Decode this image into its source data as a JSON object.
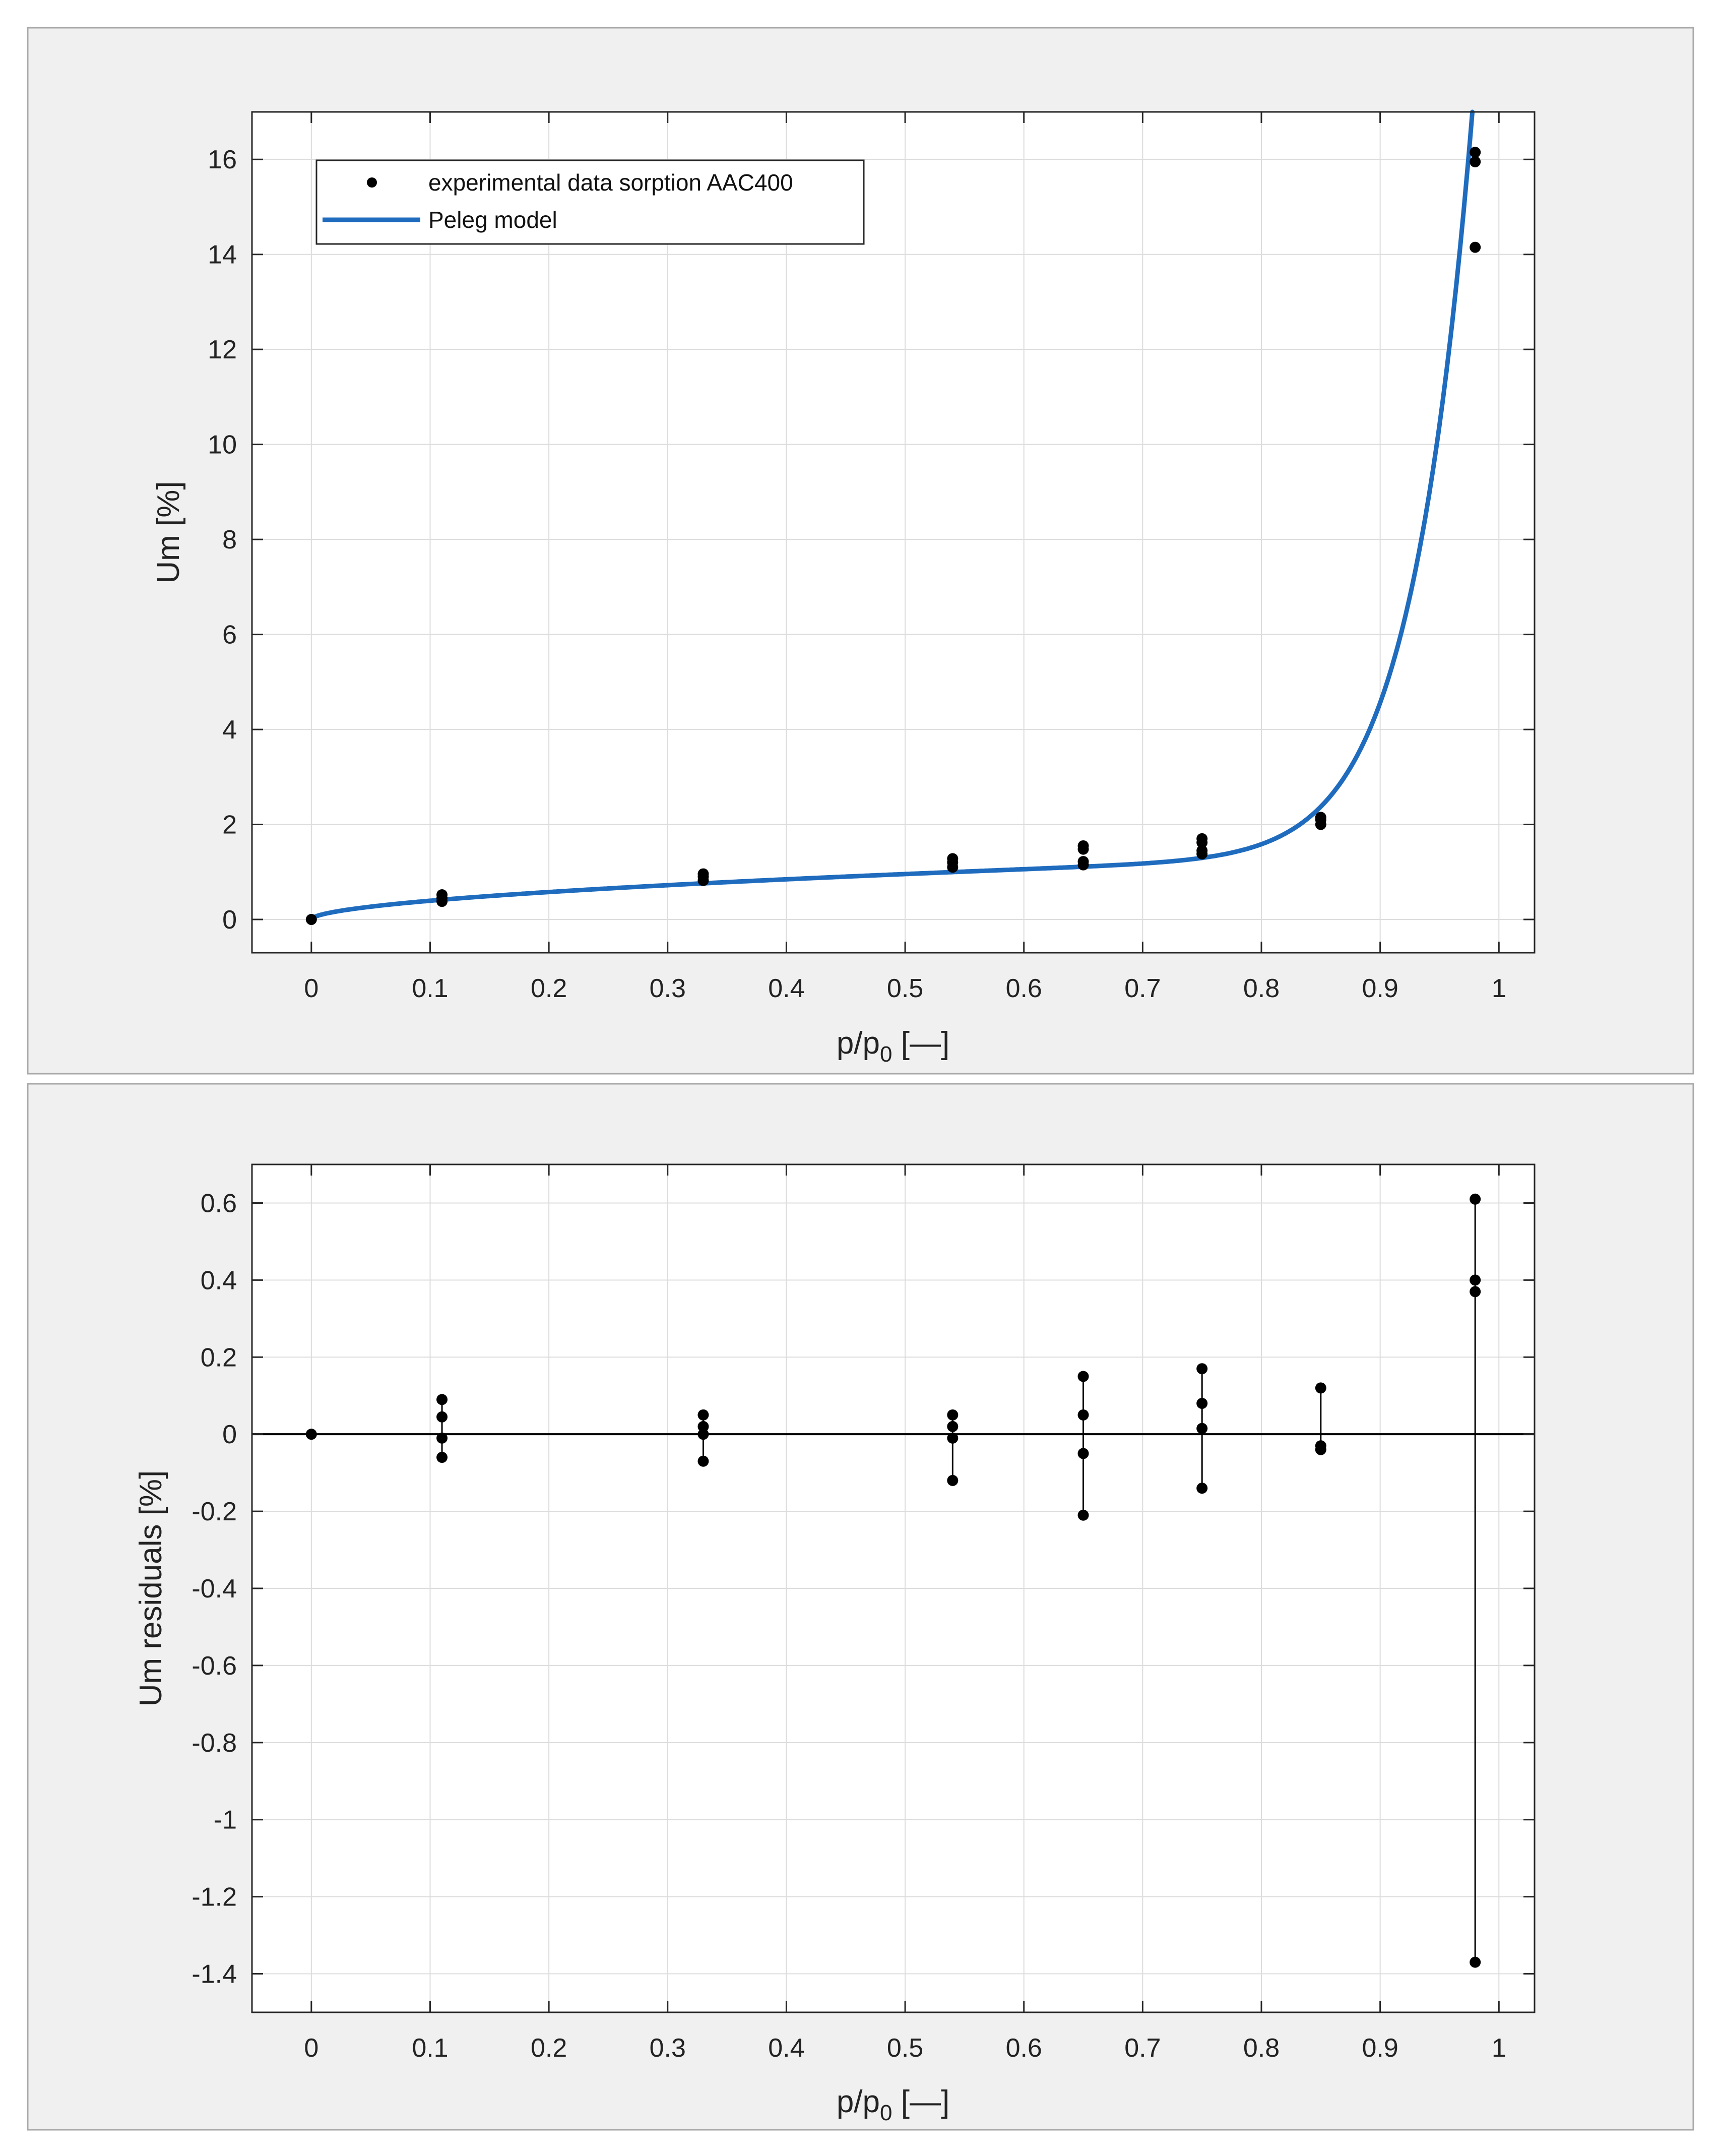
{
  "chart_data": [
    {
      "type": "scatter",
      "title": "",
      "xlabel": "p/p",
      "xlabel_sub": "0",
      "xlabel_unit": " [—]",
      "ylabel": "Um [%]",
      "xlim": [
        -0.05,
        1.03
      ],
      "ylim": [
        -0.7,
        17.0
      ],
      "xticks": [
        "0",
        "0.1",
        "0.2",
        "0.3",
        "0.4",
        "0.5",
        "0.6",
        "0.7",
        "0.8",
        "0.9",
        "1"
      ],
      "yticks": [
        "0",
        "2",
        "4",
        "6",
        "8",
        "10",
        "12",
        "14",
        "16"
      ],
      "grid": true,
      "legend_position": "top-left",
      "series": [
        {
          "name": "experimental data sorption AAC400",
          "kind": "markers",
          "color": "#000000",
          "points": [
            [
              0,
              0.0
            ],
            [
              0.11,
              0.38
            ],
            [
              0.11,
              0.45
            ],
            [
              0.11,
              0.52
            ],
            [
              0.33,
              0.82
            ],
            [
              0.33,
              0.9
            ],
            [
              0.33,
              0.96
            ],
            [
              0.54,
              1.1
            ],
            [
              0.54,
              1.2
            ],
            [
              0.54,
              1.28
            ],
            [
              0.65,
              1.15
            ],
            [
              0.65,
              1.22
            ],
            [
              0.65,
              1.48
            ],
            [
              0.65,
              1.55
            ],
            [
              0.75,
              1.38
            ],
            [
              0.75,
              1.45
            ],
            [
              0.75,
              1.62
            ],
            [
              0.75,
              1.7
            ],
            [
              0.85,
              2.0
            ],
            [
              0.85,
              2.1
            ],
            [
              0.85,
              2.15
            ],
            [
              0.98,
              14.15
            ],
            [
              0.98,
              15.95
            ],
            [
              0.98,
              16.15
            ]
          ]
        },
        {
          "name": "Peleg model",
          "kind": "line",
          "color": "#1f6cbf",
          "model": {
            "k1": 1.4,
            "n1": 0.55,
            "k2": 24.0,
            "n2": 19.0
          },
          "x_range": [
            0,
            0.982
          ]
        }
      ]
    },
    {
      "type": "scatter",
      "title": "",
      "xlabel": "p/p",
      "xlabel_sub": "0",
      "xlabel_unit": " [—]",
      "ylabel": "Um residuals [%]",
      "xlim": [
        -0.05,
        1.03
      ],
      "ylim": [
        -1.5,
        0.7
      ],
      "xticks": [
        "0",
        "0.1",
        "0.2",
        "0.3",
        "0.4",
        "0.5",
        "0.6",
        "0.7",
        "0.8",
        "0.9",
        "1"
      ],
      "yticks": [
        "0.6",
        "0.4",
        "0.2",
        "0",
        "-0.2",
        "-0.4",
        "-0.6",
        "-0.8",
        "-1",
        "-1.2",
        "-1.4"
      ],
      "grid": true,
      "zero_line": true,
      "residuals": [
        {
          "x": 0,
          "values": [
            0.0
          ]
        },
        {
          "x": 0.11,
          "values": [
            0.09,
            0.045,
            -0.01,
            -0.06
          ]
        },
        {
          "x": 0.33,
          "values": [
            0.05,
            0.02,
            0.0,
            -0.07
          ]
        },
        {
          "x": 0.54,
          "values": [
            0.05,
            0.02,
            -0.01,
            -0.12
          ]
        },
        {
          "x": 0.65,
          "values": [
            0.15,
            0.05,
            -0.05,
            -0.21
          ]
        },
        {
          "x": 0.75,
          "values": [
            0.17,
            0.08,
            0.015,
            -0.14
          ]
        },
        {
          "x": 0.85,
          "values": [
            0.12,
            -0.03,
            -0.04
          ]
        },
        {
          "x": 0.98,
          "values": [
            0.61,
            0.4,
            0.37,
            -1.37
          ]
        }
      ]
    }
  ]
}
